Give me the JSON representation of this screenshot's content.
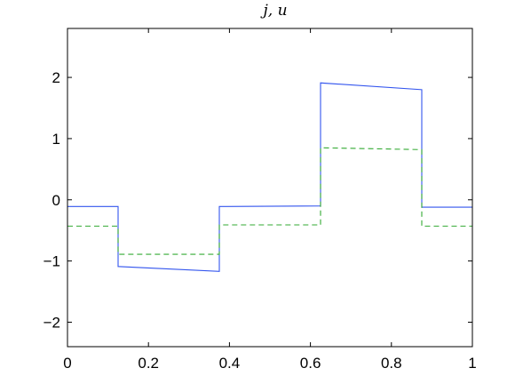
{
  "chart_data": {
    "type": "line",
    "title": "j, u",
    "xlabel": "",
    "ylabel": "",
    "xlim": [
      0,
      1
    ],
    "ylim": [
      -2.4,
      2.8
    ],
    "xticks": [
      0,
      0.2,
      0.4,
      0.6,
      0.8,
      1
    ],
    "xtick_labels": [
      "0",
      "0.2",
      "0.4",
      "0.6",
      "0.8",
      "1"
    ],
    "yticks": [
      -2,
      -1,
      0,
      1,
      2
    ],
    "ytick_labels": [
      "−2",
      "−1",
      "0",
      "1",
      "2"
    ],
    "grid": false,
    "legend": false,
    "series": [
      {
        "color": "#3355ee",
        "style": "solid",
        "x": [
          0,
          0.125,
          0.125,
          0.375,
          0.375,
          0.625,
          0.625,
          0.875,
          0.875,
          1
        ],
        "y": [
          -0.11,
          -0.11,
          -1.09,
          -1.17,
          -0.11,
          -0.1,
          1.91,
          1.8,
          -0.12,
          -0.12
        ]
      },
      {
        "color": "#33aa33",
        "style": "dashed",
        "x": [
          0,
          0.125,
          0.125,
          0.375,
          0.375,
          0.625,
          0.625,
          0.875,
          0.875,
          1
        ],
        "y": [
          -0.43,
          -0.43,
          -0.89,
          -0.89,
          -0.41,
          -0.41,
          0.85,
          0.82,
          -0.43,
          -0.43
        ]
      }
    ]
  }
}
